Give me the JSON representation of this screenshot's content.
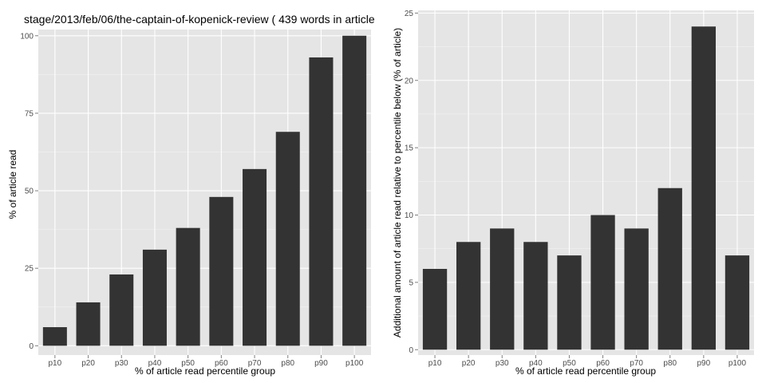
{
  "colors": {
    "panel_bg": "#e5e5e5",
    "grid_major": "#ffffff",
    "grid_minor": "#f2f2f2",
    "bar": "#333333",
    "tick_text": "#4d4d4d"
  },
  "chart_data": [
    {
      "type": "bar",
      "title": "stage/2013/feb/06/the-captain-of-kopenick-review ( 439 words in article",
      "xlabel": "% of article read percentile group",
      "ylabel": "% of article read",
      "categories": [
        "p10",
        "p20",
        "p30",
        "p40",
        "p50",
        "p60",
        "p70",
        "p80",
        "p90",
        "p100"
      ],
      "values": [
        6,
        14,
        23,
        31,
        38,
        48,
        57,
        69,
        93,
        100
      ],
      "ylim": [
        -3,
        102
      ],
      "yticks": [
        0,
        25,
        50,
        75,
        100
      ],
      "grid": true
    },
    {
      "type": "bar",
      "title": "",
      "xlabel": "% of article read percentile group",
      "ylabel": "Additional amount of article read relative to percentile below (% of article)",
      "categories": [
        "p10",
        "p20",
        "p30",
        "p40",
        "p50",
        "p60",
        "p70",
        "p80",
        "p90",
        "p100"
      ],
      "values": [
        6,
        8,
        9,
        8,
        7,
        10,
        9,
        12,
        24,
        7
      ],
      "ylim": [
        -0.4,
        25.2
      ],
      "yticks": [
        0,
        5,
        10,
        15,
        20,
        25
      ],
      "grid": true
    }
  ]
}
